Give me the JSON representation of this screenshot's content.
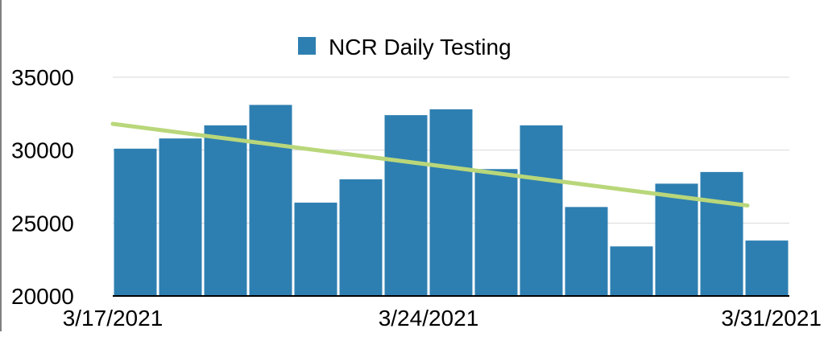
{
  "chart_data": {
    "type": "bar",
    "title": "",
    "legend": {
      "position": "top-center",
      "entries": [
        "NCR Daily Testing"
      ]
    },
    "series": [
      {
        "name": "NCR Daily Testing",
        "color": "#2e7fb1",
        "values": [
          30100,
          30800,
          31700,
          33100,
          26400,
          28000,
          32400,
          32800,
          28700,
          31700,
          26100,
          23400,
          27700,
          28500,
          23800
        ]
      }
    ],
    "trendline": {
      "type": "linear",
      "color": "#b9d77a",
      "start": 31800,
      "end": 26200
    },
    "x": [
      "3/17/2021",
      "3/18/2021",
      "3/19/2021",
      "3/20/2021",
      "3/21/2021",
      "3/22/2021",
      "3/23/2021",
      "3/24/2021",
      "3/25/2021",
      "3/26/2021",
      "3/27/2021",
      "3/28/2021",
      "3/29/2021",
      "3/30/2021",
      "3/31/2021"
    ],
    "x_tick_labels": [
      "3/17/2021",
      "3/24/2021",
      "3/31/2021"
    ],
    "y_ticks": [
      "20000",
      "25000",
      "30000",
      "35000"
    ],
    "ylim": [
      20000,
      35000
    ],
    "xlabel": "",
    "ylabel": "",
    "grid": true
  }
}
